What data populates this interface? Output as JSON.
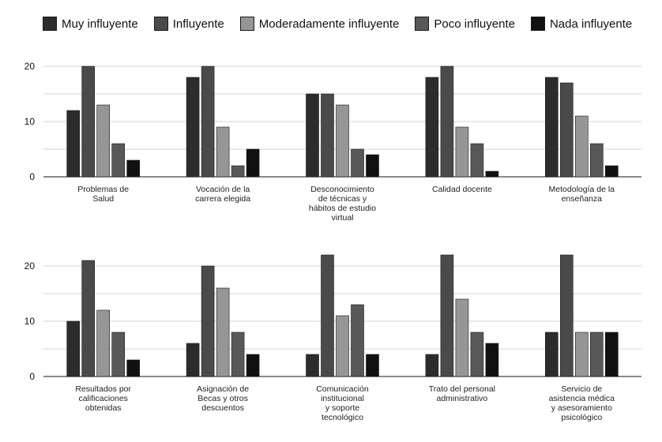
{
  "chart_data": {
    "type": "bar",
    "legend": "top",
    "grid": true,
    "ylim": [
      0,
      24
    ],
    "series": [
      {
        "name": "Muy influyente",
        "color": "#2c2c2c"
      },
      {
        "name": "Influyente",
        "color": "#4a4a4a"
      },
      {
        "name": "Moderadamente influyente",
        "color": "#969696"
      },
      {
        "name": "Poco influyente",
        "color": "#585858"
      },
      {
        "name": "Nada influyente",
        "color": "#111111"
      }
    ],
    "panels": [
      {
        "yticks": [
          "0",
          "10",
          "20"
        ],
        "categories": [
          {
            "label": [
              "Problemas de",
              "Salud"
            ],
            "values": [
              12,
              20,
              13,
              6,
              3
            ]
          },
          {
            "label": [
              "Vocación de la",
              "carrera elegida"
            ],
            "values": [
              18,
              20,
              9,
              2,
              5
            ]
          },
          {
            "label": [
              "Desconocimiento",
              "de técnicas y",
              "hábitos de estudio",
              "virtual"
            ],
            "values": [
              15,
              15,
              13,
              5,
              4
            ]
          },
          {
            "label": [
              "Calidad docente"
            ],
            "values": [
              18,
              20,
              9,
              6,
              1
            ]
          },
          {
            "label": [
              "Metodología de la",
              "enseñanza"
            ],
            "values": [
              18,
              17,
              11,
              6,
              2
            ]
          }
        ]
      },
      {
        "yticks": [
          "0",
          "10",
          "20"
        ],
        "categories": [
          {
            "label": [
              "Resultados por",
              "calificaciones",
              "obtenidas"
            ],
            "values": [
              10,
              21,
              12,
              8,
              3
            ]
          },
          {
            "label": [
              "Asignación de",
              "Becas y otros",
              "descuentos"
            ],
            "values": [
              6,
              20,
              16,
              8,
              4
            ]
          },
          {
            "label": [
              "Comunicación",
              "institucional",
              "y soporte",
              "tecnológico"
            ],
            "values": [
              4,
              22,
              11,
              13,
              4
            ]
          },
          {
            "label": [
              "Trato del personal",
              "administrativo"
            ],
            "values": [
              4,
              22,
              14,
              8,
              6
            ]
          },
          {
            "label": [
              "Servicio de",
              "asistencia médica",
              "y asesoramiento",
              "psicológico"
            ],
            "values": [
              8,
              22,
              8,
              8,
              8
            ]
          }
        ]
      }
    ]
  }
}
